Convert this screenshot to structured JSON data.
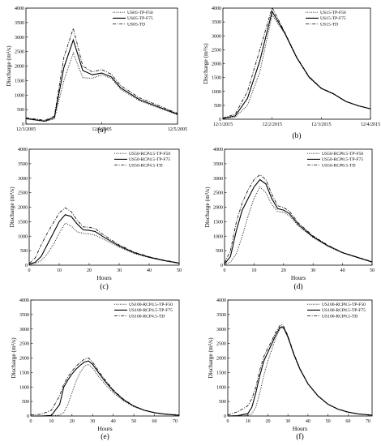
{
  "figure": {
    "ylabel": "Discharge (m³/s)",
    "panels": [
      {
        "label": "(a)",
        "xlabel": "",
        "legend": [
          "US05-TP-F50",
          "US05-TP-F75",
          "US05-TD"
        ],
        "ticks_x": [
          "12/3/2005",
          "12/4/2005",
          "12/5/2005"
        ],
        "ticks_y": [
          "0",
          "500",
          "1000",
          "1500",
          "2000",
          "2500",
          "3000",
          "3500",
          "4000"
        ]
      },
      {
        "label": "(b)",
        "xlabel": "",
        "legend": [
          "US15-TP-F50",
          "US15-TP-F75",
          "US15-TD"
        ],
        "ticks_x": [
          "12/1/2015",
          "12/2/2015",
          "12/3/2015",
          "12/4/2015"
        ],
        "ticks_y": [
          "0",
          "500",
          "1000",
          "1500",
          "2000",
          "2500",
          "3000",
          "3500",
          "4000"
        ]
      },
      {
        "label": "(c)",
        "xlabel": "Hours",
        "legend": [
          "US50-RCP4.5-TP-F50",
          "US50-RCP4.5-TP-F75",
          "US50-RCP4.5-TD"
        ],
        "ticks_x": [
          "0",
          "10",
          "20",
          "30",
          "40",
          "50"
        ],
        "ticks_y": [
          "0",
          "500",
          "1000",
          "1500",
          "2000",
          "2500",
          "3000",
          "3500",
          "4000"
        ]
      },
      {
        "label": "(d)",
        "xlabel": "Hours",
        "legend": [
          "US50-RCP8.5-TP-F50",
          "US50-RCP8.5-TP-F75",
          "US50-RCP8.5-TD"
        ],
        "ticks_x": [
          "0",
          "10",
          "20",
          "30",
          "40",
          "50"
        ],
        "ticks_y": [
          "0",
          "500",
          "1000",
          "1500",
          "2000",
          "2500",
          "3000",
          "3500",
          "4000"
        ]
      },
      {
        "label": "(e)",
        "xlabel": "Hours",
        "legend": [
          "US100-RCP4.5-TP-F50",
          "US100-RCP4.5-TP-F75",
          "US100-RCP4.5-TD"
        ],
        "ticks_x": [
          "0",
          "10",
          "20",
          "30",
          "40",
          "50",
          "60",
          "70"
        ],
        "ticks_y": [
          "0",
          "500",
          "1000",
          "1500",
          "2000",
          "2500",
          "3000",
          "3500",
          "4000"
        ]
      },
      {
        "label": "(f)",
        "xlabel": "Hours",
        "legend": [
          "US100-RCP8.5-TP-F50",
          "US100-RCP8.5-TP-F75",
          "US100-RCP8.5-TD"
        ],
        "ticks_x": [
          "0",
          "10",
          "20",
          "30",
          "40",
          "50",
          "60",
          "70"
        ],
        "ticks_y": [
          "0",
          "500",
          "1000",
          "1500",
          "2000",
          "2500",
          "3000",
          "3500",
          "4000"
        ]
      }
    ]
  },
  "chart_data": [
    {
      "type": "line",
      "title": "",
      "xlabel": "",
      "ylabel": "Discharge (m³/s)",
      "xlim": [
        "2005-12-03 00:00",
        "2005-12-05 00:00"
      ],
      "ylim": [
        0,
        4000
      ],
      "legend_position": "top-right",
      "series": [
        {
          "name": "US05-TP-F50",
          "style": "dotted",
          "x": [
            "2005-12-03 00:00",
            "2005-12-03 06:00",
            "2005-12-03 09:00",
            "2005-12-03 12:00",
            "2005-12-03 15:00",
            "2005-12-03 18:00",
            "2005-12-03 21:00",
            "2005-12-04 00:00",
            "2005-12-04 03:00",
            "2005-12-04 06:00",
            "2005-12-04 12:00",
            "2005-12-04 18:00",
            "2005-12-05 00:00"
          ],
          "y": [
            180,
            90,
            180,
            1500,
            2450,
            1600,
            1580,
            1700,
            1580,
            1200,
            800,
            560,
            320
          ]
        },
        {
          "name": "US05-TP-F75",
          "style": "solid",
          "x": [
            "2005-12-03 00:00",
            "2005-12-03 06:00",
            "2005-12-03 09:00",
            "2005-12-03 12:00",
            "2005-12-03 15:00",
            "2005-12-03 18:00",
            "2005-12-03 21:00",
            "2005-12-04 00:00",
            "2005-12-04 03:00",
            "2005-12-04 06:00",
            "2005-12-04 12:00",
            "2005-12-04 18:00",
            "2005-12-05 00:00"
          ],
          "y": [
            190,
            100,
            230,
            1950,
            2900,
            1850,
            1700,
            1760,
            1630,
            1250,
            840,
            590,
            340
          ]
        },
        {
          "name": "US05-TD",
          "style": "dashdot",
          "x": [
            "2005-12-03 00:00",
            "2005-12-03 06:00",
            "2005-12-03 09:00",
            "2005-12-03 12:00",
            "2005-12-03 15:00",
            "2005-12-03 18:00",
            "2005-12-03 21:00",
            "2005-12-04 00:00",
            "2005-12-04 03:00",
            "2005-12-04 06:00",
            "2005-12-04 12:00",
            "2005-12-04 18:00",
            "2005-12-05 00:00"
          ],
          "y": [
            220,
            130,
            280,
            2300,
            3300,
            2000,
            1800,
            1880,
            1720,
            1330,
            900,
            640,
            370
          ]
        }
      ]
    },
    {
      "type": "line",
      "title": "",
      "xlabel": "",
      "ylabel": "Discharge (m³/s)",
      "xlim": [
        "2015-12-01 00:00",
        "2015-12-04 00:00"
      ],
      "ylim": [
        0,
        4000
      ],
      "legend_position": "top-right",
      "series": [
        {
          "name": "US15-TP-F50",
          "style": "dotted",
          "x": [
            "2015-12-01 00:00",
            "2015-12-01 06:00",
            "2015-12-01 12:00",
            "2015-12-01 18:00",
            "2015-12-02 00:00",
            "2015-12-02 06:00",
            "2015-12-02 12:00",
            "2015-12-02 18:00",
            "2015-12-03 00:00",
            "2015-12-03 06:00",
            "2015-12-03 12:00",
            "2015-12-03 18:00",
            "2015-12-04 00:00"
          ],
          "y": [
            20,
            80,
            500,
            1700,
            3750,
            3100,
            2200,
            1500,
            1100,
            900,
            630,
            480,
            370
          ]
        },
        {
          "name": "US15-TP-F75",
          "style": "solid",
          "x": [
            "2015-12-01 00:00",
            "2015-12-01 06:00",
            "2015-12-01 12:00",
            "2015-12-01 18:00",
            "2015-12-02 00:00",
            "2015-12-02 06:00",
            "2015-12-02 12:00",
            "2015-12-02 18:00",
            "2015-12-03 00:00",
            "2015-12-03 06:00",
            "2015-12-03 12:00",
            "2015-12-03 18:00",
            "2015-12-04 00:00"
          ],
          "y": [
            30,
            120,
            750,
            2100,
            3880,
            3130,
            2220,
            1520,
            1110,
            910,
            640,
            485,
            375
          ]
        },
        {
          "name": "US15-TD",
          "style": "dashdot",
          "x": [
            "2015-12-01 00:00",
            "2015-12-01 06:00",
            "2015-12-01 12:00",
            "2015-12-01 18:00",
            "2015-12-02 00:00",
            "2015-12-02 06:00",
            "2015-12-02 12:00",
            "2015-12-02 18:00",
            "2015-12-03 00:00",
            "2015-12-03 06:00",
            "2015-12-03 12:00",
            "2015-12-03 18:00",
            "2015-12-04 00:00"
          ],
          "y": [
            40,
            180,
            1000,
            2500,
            4020,
            3160,
            2240,
            1540,
            1120,
            920,
            645,
            490,
            380
          ]
        }
      ]
    },
    {
      "type": "line",
      "title": "",
      "xlabel": "Hours",
      "ylabel": "Discharge (m³/s)",
      "xlim": [
        0,
        50
      ],
      "ylim": [
        0,
        4000
      ],
      "legend_position": "top-right",
      "series": [
        {
          "name": "US50-RCP4.5-TP-F50",
          "style": "dotted",
          "x": [
            0,
            2,
            4,
            6,
            8,
            10,
            12,
            14,
            16,
            18,
            20,
            22,
            25,
            30,
            35,
            40,
            45,
            50
          ],
          "y": [
            20,
            60,
            160,
            380,
            700,
            1100,
            1450,
            1350,
            1150,
            1100,
            1080,
            1030,
            880,
            620,
            400,
            260,
            150,
            60
          ]
        },
        {
          "name": "US50-RCP4.5-TP-F75",
          "style": "solid",
          "x": [
            0,
            2,
            4,
            6,
            8,
            10,
            12,
            14,
            16,
            18,
            20,
            22,
            25,
            30,
            35,
            40,
            45,
            50
          ],
          "y": [
            30,
            100,
            300,
            700,
            1100,
            1500,
            1740,
            1680,
            1420,
            1220,
            1200,
            1160,
            960,
            660,
            430,
            275,
            160,
            70
          ]
        },
        {
          "name": "US50-RCP4.5-TD",
          "style": "dashdot",
          "x": [
            0,
            2,
            4,
            6,
            8,
            10,
            12,
            14,
            16,
            18,
            20,
            22,
            25,
            30,
            35,
            40,
            45,
            50
          ],
          "y": [
            60,
            250,
            700,
            1100,
            1450,
            1800,
            1980,
            1850,
            1550,
            1320,
            1310,
            1260,
            1030,
            700,
            450,
            290,
            170,
            80
          ]
        }
      ]
    },
    {
      "type": "line",
      "title": "",
      "xlabel": "Hours",
      "ylabel": "Discharge (m³/s)",
      "xlim": [
        0,
        50
      ],
      "ylim": [
        0,
        4000
      ],
      "legend_position": "top-right",
      "series": [
        {
          "name": "US50-RCP8.5-TP-F50",
          "style": "dotted",
          "x": [
            0,
            2,
            4,
            6,
            8,
            10,
            12,
            14,
            16,
            18,
            20,
            22,
            25,
            30,
            35,
            40,
            45,
            50
          ],
          "y": [
            20,
            100,
            400,
            1000,
            1700,
            2300,
            2700,
            2500,
            2100,
            1850,
            1820,
            1700,
            1350,
            950,
            650,
            420,
            260,
            100
          ]
        },
        {
          "name": "US50-RCP8.5-TP-F75",
          "style": "solid",
          "x": [
            0,
            2,
            4,
            6,
            8,
            10,
            12,
            14,
            16,
            18,
            20,
            22,
            25,
            30,
            35,
            40,
            45,
            50
          ],
          "y": [
            40,
            300,
            1200,
            1900,
            2300,
            2700,
            2950,
            2800,
            2300,
            1950,
            1900,
            1780,
            1400,
            980,
            670,
            430,
            270,
            110
          ]
        },
        {
          "name": "US50-RCP8.5-TD",
          "style": "dashdot",
          "x": [
            0,
            2,
            4,
            6,
            8,
            10,
            12,
            14,
            16,
            18,
            20,
            22,
            25,
            30,
            35,
            40,
            45,
            50
          ],
          "y": [
            80,
            500,
            1500,
            2150,
            2600,
            2950,
            3120,
            2950,
            2450,
            2050,
            1990,
            1860,
            1460,
            1010,
            690,
            440,
            280,
            120
          ]
        }
      ]
    },
    {
      "type": "line",
      "title": "",
      "xlabel": "Hours",
      "ylabel": "Discharge (m³/s)",
      "xlim": [
        0,
        72
      ],
      "ylim": [
        0,
        4000
      ],
      "legend_position": "top-right",
      "series": [
        {
          "name": "US100-RCP4.5-TP-F50",
          "style": "dotted",
          "x": [
            0,
            5,
            10,
            14,
            16,
            18,
            20,
            22,
            24,
            26,
            28,
            30,
            33,
            36,
            40,
            45,
            50,
            55,
            60,
            65,
            72
          ],
          "y": [
            0,
            0,
            5,
            30,
            120,
            400,
            800,
            1200,
            1500,
            1720,
            1780,
            1650,
            1350,
            1100,
            800,
            520,
            320,
            190,
            110,
            60,
            20
          ]
        },
        {
          "name": "US100-RCP4.5-TP-F75",
          "style": "solid",
          "x": [
            0,
            5,
            10,
            14,
            16,
            18,
            20,
            22,
            24,
            26,
            28,
            30,
            33,
            36,
            40,
            45,
            50,
            55,
            60,
            65,
            72
          ],
          "y": [
            0,
            0,
            20,
            400,
            1000,
            1250,
            1450,
            1620,
            1750,
            1860,
            1900,
            1780,
            1480,
            1200,
            870,
            560,
            340,
            200,
            115,
            65,
            25
          ]
        },
        {
          "name": "US100-RCP4.5-TD",
          "style": "dashdot",
          "x": [
            0,
            5,
            10,
            14,
            16,
            18,
            20,
            22,
            24,
            26,
            28,
            30,
            33,
            36,
            40,
            45,
            50,
            55,
            60,
            65,
            72
          ],
          "y": [
            40,
            60,
            200,
            700,
            1100,
            1350,
            1550,
            1720,
            1850,
            1960,
            2000,
            1860,
            1540,
            1250,
            900,
            580,
            350,
            205,
            120,
            70,
            30
          ]
        }
      ]
    },
    {
      "type": "line",
      "title": "",
      "xlabel": "Hours",
      "ylabel": "Discharge (m³/s)",
      "xlim": [
        0,
        72
      ],
      "ylim": [
        0,
        4000
      ],
      "legend_position": "top-right",
      "series": [
        {
          "name": "US100-RCP8.5-TP-F50",
          "style": "dotted",
          "x": [
            0,
            5,
            10,
            12,
            14,
            16,
            18,
            20,
            22,
            24,
            26,
            27,
            28,
            30,
            33,
            36,
            40,
            45,
            50,
            55,
            60,
            65,
            72
          ],
          "y": [
            0,
            0,
            20,
            80,
            300,
            800,
            1400,
            1900,
            2300,
            2700,
            3000,
            3050,
            3000,
            2700,
            2100,
            1600,
            1100,
            680,
            400,
            230,
            130,
            70,
            25
          ]
        },
        {
          "name": "US100-RCP8.5-TP-F75",
          "style": "solid",
          "x": [
            0,
            5,
            10,
            12,
            14,
            16,
            18,
            20,
            22,
            24,
            26,
            27,
            28,
            30,
            33,
            36,
            40,
            45,
            50,
            55,
            60,
            65,
            72
          ],
          "y": [
            0,
            10,
            80,
            300,
            800,
            1400,
            1900,
            2200,
            2500,
            2800,
            3050,
            3080,
            3030,
            2730,
            2120,
            1620,
            1110,
            690,
            405,
            235,
            135,
            72,
            27
          ]
        },
        {
          "name": "US100-RCP8.5-TD",
          "style": "dashdot",
          "x": [
            0,
            5,
            10,
            12,
            14,
            16,
            18,
            20,
            22,
            24,
            26,
            27,
            28,
            30,
            33,
            36,
            40,
            45,
            50,
            55,
            60,
            65,
            72
          ],
          "y": [
            30,
            150,
            350,
            600,
            1000,
            1600,
            2050,
            2350,
            2600,
            2900,
            3120,
            3150,
            3080,
            2770,
            2150,
            1640,
            1120,
            700,
            410,
            240,
            140,
            75,
            30
          ]
        }
      ]
    }
  ]
}
